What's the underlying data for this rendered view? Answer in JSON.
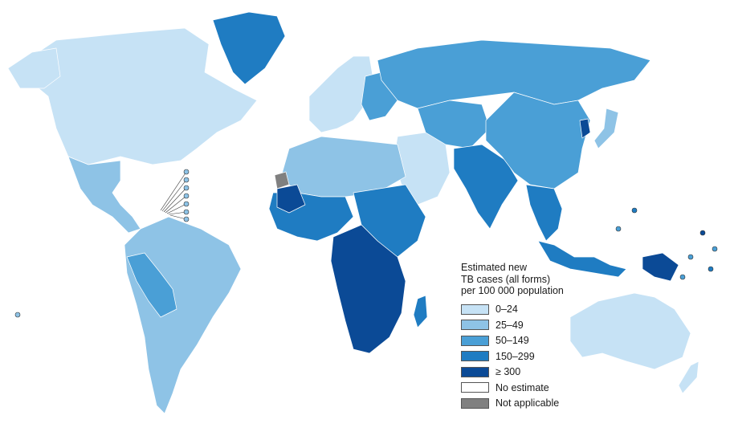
{
  "legend": {
    "title_lines": [
      "Estimated new",
      "TB cases (all forms)",
      "per 100 000 population"
    ],
    "items": [
      {
        "label": "0–24",
        "color": "#c6e2f5"
      },
      {
        "label": "25–49",
        "color": "#8ec3e6"
      },
      {
        "label": "50–149",
        "color": "#4a9fd6"
      },
      {
        "label": "150–299",
        "color": "#1f7cc2"
      },
      {
        "label": "≥ 300",
        "color": "#0b4a96"
      },
      {
        "label": "No estimate",
        "color": "#ffffff"
      },
      {
        "label": "Not applicable",
        "color": "#808080"
      }
    ]
  },
  "regions": {
    "north_america": "0–24",
    "greenland": "150–299",
    "mexico_central_america": "25–49",
    "south_america_north": "25–49",
    "brazil": "25–49",
    "peru_bolivia": "50–149",
    "southern_cone": "25–49",
    "western_europe": "0–24",
    "eastern_europe": "50–149",
    "russia": "50–149",
    "north_africa": "25–49",
    "west_africa": "150–299",
    "mauritania": "≥ 300",
    "western_sahara": "Not applicable",
    "central_africa": "≥ 300",
    "east_africa": "150–299",
    "southern_africa": "≥ 300",
    "madagascar": "150–299",
    "middle_east": "0–24",
    "south_asia": "150–299",
    "china": "50–149",
    "korea_japan": "25–49",
    "southeast_asia": "150–299",
    "indonesia_png": "150–299",
    "australia": "0–24",
    "new_zealand": "0–24"
  }
}
